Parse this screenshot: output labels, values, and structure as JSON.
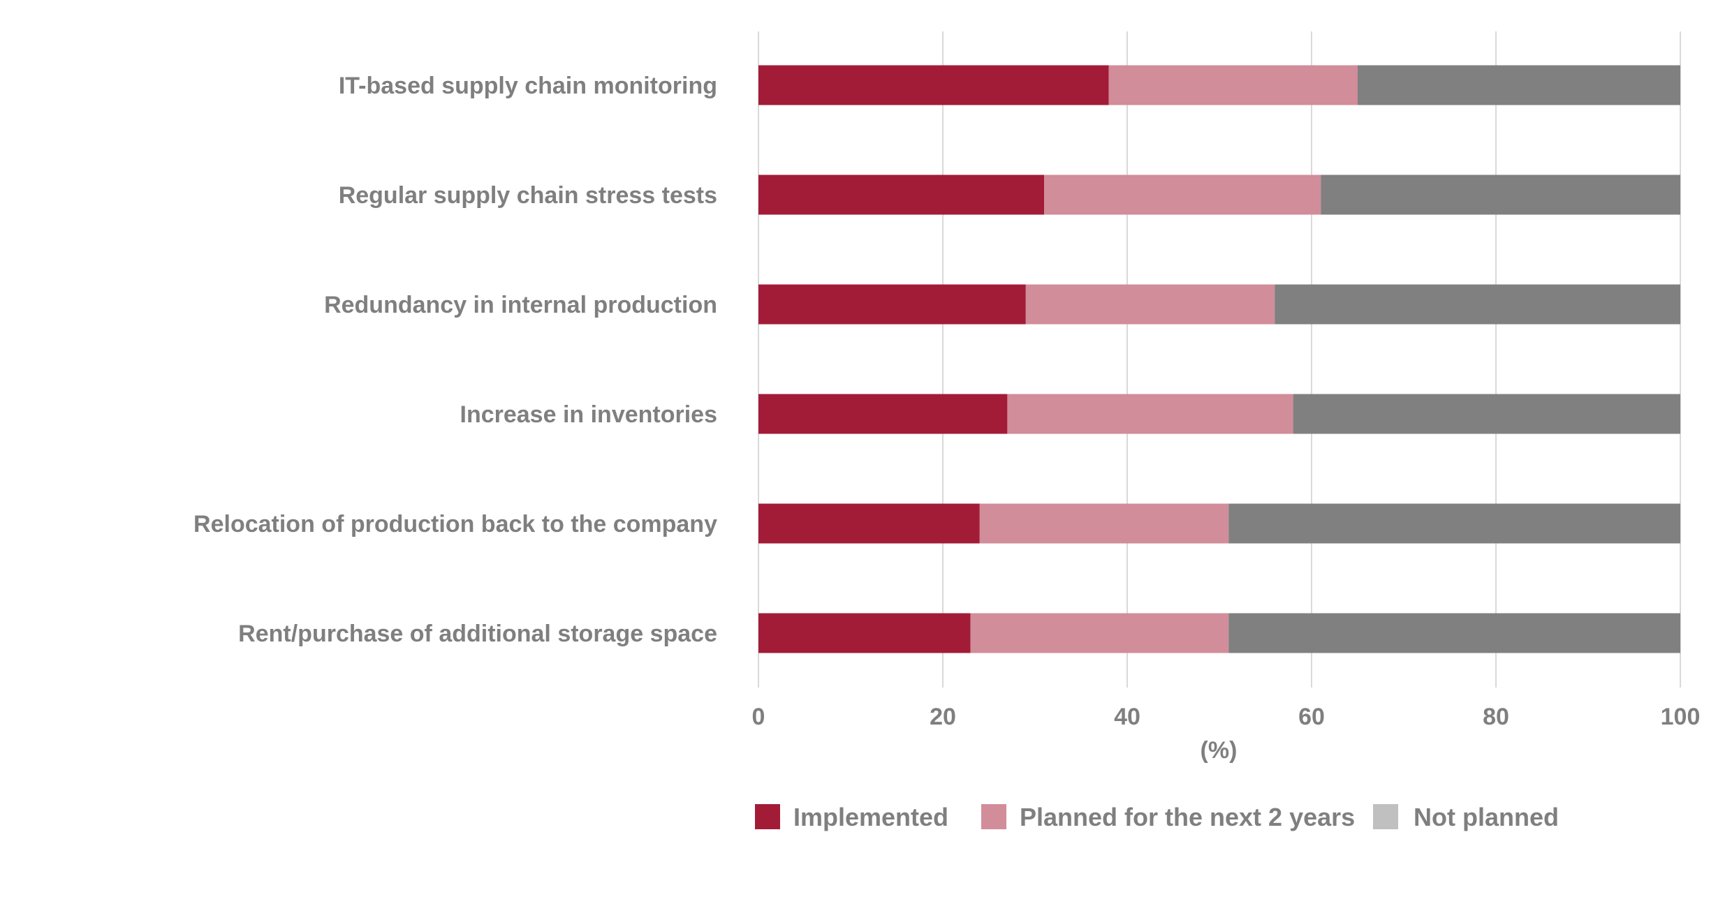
{
  "chart_data": {
    "type": "bar",
    "orientation": "horizontal",
    "stacked": true,
    "categories": [
      "IT-based supply chain monitoring",
      "Regular supply chain stress tests",
      "Redundancy in internal production",
      "Increase in inventories",
      "Relocation of production back to the company",
      "Rent/purchase of additional storage space"
    ],
    "series": [
      {
        "name": "Implemented",
        "color": "#a21c38",
        "values": [
          38,
          31,
          29,
          27,
          24,
          23
        ]
      },
      {
        "name": "Planned for the next 2 years",
        "color": "#d18d99",
        "values": [
          27,
          30,
          27,
          31,
          27,
          28
        ]
      },
      {
        "name": "Not planned",
        "color": "#808080",
        "legend_color": "#c0c0c0",
        "values": [
          35,
          39,
          44,
          42,
          49,
          49
        ]
      }
    ],
    "xlabel": "(%)",
    "xlim": [
      0,
      100
    ],
    "xticks": [
      "0",
      "20",
      "40",
      "60",
      "80",
      "100"
    ],
    "grid": true,
    "legend_position": "bottom"
  }
}
